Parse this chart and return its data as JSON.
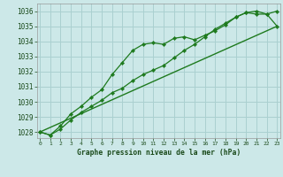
{
  "line1_x": [
    0,
    1,
    2,
    3,
    4,
    5,
    6,
    7,
    8,
    9,
    10,
    11,
    12,
    13,
    14,
    15,
    16,
    17,
    18,
    19,
    20,
    21,
    22,
    23
  ],
  "line1_y": [
    1028.0,
    1027.8,
    1028.4,
    1029.2,
    1029.7,
    1030.3,
    1030.8,
    1031.8,
    1032.6,
    1033.4,
    1033.8,
    1033.9,
    1033.8,
    1034.2,
    1034.3,
    1034.1,
    1034.4,
    1034.7,
    1035.1,
    1035.6,
    1035.9,
    1035.8,
    1035.8,
    1036.0
  ],
  "line2_x": [
    0,
    1,
    2,
    3,
    4,
    5,
    6,
    7,
    8,
    9,
    10,
    11,
    12,
    13,
    14,
    15,
    16,
    17,
    18,
    19,
    20,
    21,
    22,
    23
  ],
  "line2_y": [
    1028.0,
    1027.8,
    1028.2,
    1028.8,
    1029.3,
    1029.7,
    1030.1,
    1030.6,
    1030.9,
    1031.4,
    1031.8,
    1032.1,
    1032.4,
    1032.9,
    1033.4,
    1033.8,
    1034.3,
    1034.8,
    1035.2,
    1035.6,
    1035.9,
    1036.0,
    1035.8,
    1035.0
  ],
  "line3_x": [
    0,
    23
  ],
  "line3_y": [
    1028.0,
    1035.0
  ],
  "line_color": "#1e7a1e",
  "bg_color": "#cce8e8",
  "grid_color": "#aad0d0",
  "tick_color": "#1a4a1a",
  "title": "Graphe pression niveau de la mer (hPa)",
  "ylim_min": 1027.6,
  "ylim_max": 1036.5,
  "xlim_min": -0.3,
  "xlim_max": 23.3,
  "yticks": [
    1028,
    1029,
    1030,
    1031,
    1032,
    1033,
    1034,
    1035,
    1036
  ],
  "xticks": [
    0,
    1,
    2,
    3,
    4,
    5,
    6,
    7,
    8,
    9,
    10,
    11,
    12,
    13,
    14,
    15,
    16,
    17,
    18,
    19,
    20,
    21,
    22,
    23
  ]
}
